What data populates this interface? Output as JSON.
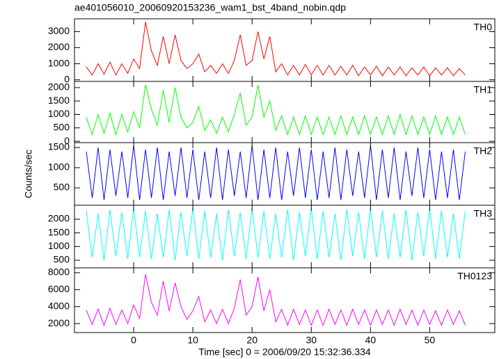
{
  "chart_data": [
    {
      "type": "line",
      "title": "ae401056010_20060920153236_wam1_bst_4band_nobin.qdp",
      "label": "TH0",
      "color": "#ff0000",
      "ylim": [
        -100,
        3800
      ],
      "yticks": [
        0,
        1000,
        2000,
        3000
      ],
      "xlim": [
        -10,
        61
      ],
      "x": [
        -8,
        -7,
        -6,
        -5,
        -4,
        -3,
        -2,
        -1,
        0,
        1,
        2,
        3,
        4,
        5,
        6,
        7,
        8,
        9,
        10,
        11,
        12,
        13,
        14,
        15,
        16,
        17,
        18,
        19,
        20,
        21,
        22,
        23,
        24,
        25,
        26,
        27,
        28,
        29,
        30,
        31,
        32,
        33,
        34,
        35,
        36,
        37,
        38,
        39,
        40,
        41,
        42,
        43,
        44,
        45,
        46,
        47,
        48,
        49,
        50,
        51,
        52,
        53,
        54,
        55,
        56
      ],
      "values": [
        800,
        300,
        1000,
        350,
        1100,
        300,
        1000,
        400,
        1300,
        700,
        3600,
        1800,
        900,
        2700,
        1000,
        2800,
        1200,
        700,
        1000,
        1600,
        500,
        900,
        400,
        1000,
        400,
        1200,
        2800,
        900,
        1200,
        3000,
        1300,
        2700,
        500,
        1000,
        300,
        900,
        300,
        950,
        300,
        900,
        300,
        900,
        300,
        850,
        300,
        900,
        250,
        800,
        300,
        850,
        250,
        800,
        300,
        800,
        250,
        750,
        300,
        800,
        250,
        750,
        300,
        750,
        250,
        700,
        300
      ]
    },
    {
      "type": "line",
      "label": "TH1",
      "color": "#00ff00",
      "ylim": [
        -50,
        2230
      ],
      "yticks": [
        0,
        500,
        1000,
        1500,
        2000
      ],
      "xlim": [
        -10,
        61
      ],
      "x": [
        -8,
        -7,
        -6,
        -5,
        -4,
        -3,
        -2,
        -1,
        0,
        1,
        2,
        3,
        4,
        5,
        6,
        7,
        8,
        9,
        10,
        11,
        12,
        13,
        14,
        15,
        16,
        17,
        18,
        19,
        20,
        21,
        22,
        23,
        24,
        25,
        26,
        27,
        28,
        29,
        30,
        31,
        32,
        33,
        34,
        35,
        36,
        37,
        38,
        39,
        40,
        41,
        42,
        43,
        44,
        45,
        46,
        47,
        48,
        49,
        50,
        51,
        52,
        53,
        54,
        55,
        56
      ],
      "values": [
        900,
        250,
        1000,
        300,
        1050,
        250,
        1000,
        350,
        1100,
        500,
        2100,
        1200,
        600,
        1900,
        700,
        2000,
        900,
        500,
        700,
        1300,
        400,
        800,
        300,
        900,
        350,
        1000,
        1800,
        600,
        900,
        2100,
        900,
        1500,
        400,
        950,
        250,
        900,
        250,
        950,
        250,
        900,
        250,
        900,
        250,
        950,
        250,
        900,
        250,
        950,
        250,
        900,
        250,
        950,
        250,
        1000,
        250,
        950,
        250,
        900,
        250,
        950,
        250,
        900,
        250,
        900,
        250
      ]
    },
    {
      "type": "line",
      "label": "TH2",
      "ylabel": "Counts/sec",
      "color": "#0000ff",
      "ylim": [
        70,
        1620
      ],
      "yticks": [
        500,
        1000,
        1500
      ],
      "xlim": [
        -10,
        61
      ],
      "x": [
        -8,
        -7,
        -6,
        -5,
        -4,
        -3,
        -2,
        -1,
        0,
        1,
        2,
        3,
        4,
        5,
        6,
        7,
        8,
        9,
        10,
        11,
        12,
        13,
        14,
        15,
        16,
        17,
        18,
        19,
        20,
        21,
        22,
        23,
        24,
        25,
        26,
        27,
        28,
        29,
        30,
        31,
        32,
        33,
        34,
        35,
        36,
        37,
        38,
        39,
        40,
        41,
        42,
        43,
        44,
        45,
        46,
        47,
        48,
        49,
        50,
        51,
        52,
        53,
        54,
        55,
        56
      ],
      "values": [
        1400,
        250,
        1500,
        200,
        1450,
        300,
        1400,
        250,
        1550,
        200,
        1450,
        250,
        1500,
        200,
        1400,
        300,
        1500,
        250,
        1450,
        200,
        1400,
        250,
        1500,
        200,
        1450,
        300,
        1400,
        250,
        1550,
        200,
        1450,
        250,
        1500,
        200,
        1400,
        300,
        1500,
        250,
        1450,
        200,
        1400,
        250,
        1500,
        200,
        1450,
        300,
        1400,
        250,
        1550,
        200,
        1450,
        250,
        1500,
        200,
        1400,
        300,
        1500,
        250,
        1450,
        200,
        1400,
        250,
        1450,
        200,
        1400
      ]
    },
    {
      "type": "line",
      "label": "TH3",
      "color": "#00ffff",
      "ylim": [
        220,
        2510
      ],
      "yticks": [
        500,
        1000,
        1500,
        2000
      ],
      "xlim": [
        -10,
        61
      ],
      "x": [
        -8,
        -7,
        -6,
        -5,
        -4,
        -3,
        -2,
        -1,
        0,
        1,
        2,
        3,
        4,
        5,
        6,
        7,
        8,
        9,
        10,
        11,
        12,
        13,
        14,
        15,
        16,
        17,
        18,
        19,
        20,
        21,
        22,
        23,
        24,
        25,
        26,
        27,
        28,
        29,
        30,
        31,
        32,
        33,
        34,
        35,
        36,
        37,
        38,
        39,
        40,
        41,
        42,
        43,
        44,
        45,
        46,
        47,
        48,
        49,
        50,
        51,
        52,
        53,
        54,
        55,
        56
      ],
      "values": [
        2300,
        600,
        2200,
        500,
        2350,
        650,
        2250,
        550,
        2400,
        600,
        2300,
        550,
        2200,
        600,
        2350,
        500,
        2250,
        650,
        2400,
        550,
        2300,
        600,
        2200,
        500,
        2350,
        650,
        2250,
        550,
        2400,
        600,
        2300,
        550,
        2200,
        600,
        2350,
        500,
        2250,
        650,
        2400,
        550,
        2300,
        600,
        2200,
        500,
        2350,
        650,
        2250,
        550,
        2400,
        600,
        2300,
        550,
        2200,
        600,
        2350,
        500,
        2250,
        650,
        2400,
        550,
        2300,
        600,
        2200,
        550,
        2300
      ]
    },
    {
      "type": "line",
      "label": "TH0123",
      "xlabel": "Time [sec] 0 = 2006/09/20 15:32:36.334",
      "color": "#ff00ff",
      "ylim": [
        940,
        8570
      ],
      "yticks": [
        2000,
        4000,
        6000,
        8000
      ],
      "xlim": [
        -10,
        61
      ],
      "xticks": [
        0,
        10,
        20,
        30,
        40,
        50
      ],
      "x": [
        -8,
        -7,
        -6,
        -5,
        -4,
        -3,
        -2,
        -1,
        0,
        1,
        2,
        3,
        4,
        5,
        6,
        7,
        8,
        9,
        10,
        11,
        12,
        13,
        14,
        15,
        16,
        17,
        18,
        19,
        20,
        21,
        22,
        23,
        24,
        25,
        26,
        27,
        28,
        29,
        30,
        31,
        32,
        33,
        34,
        35,
        36,
        37,
        38,
        39,
        40,
        41,
        42,
        43,
        44,
        45,
        46,
        47,
        48,
        49,
        50,
        51,
        52,
        53,
        54,
        55,
        56
      ],
      "values": [
        3600,
        1900,
        3700,
        1800,
        3800,
        1900,
        3600,
        2000,
        4200,
        2600,
        7800,
        4500,
        3000,
        7000,
        3500,
        6800,
        4000,
        2500,
        3500,
        5200,
        2200,
        3600,
        2000,
        3700,
        2000,
        3800,
        7200,
        3000,
        4000,
        7500,
        3500,
        6000,
        2200,
        3700,
        1800,
        3700,
        1900,
        3600,
        1800,
        3600,
        1800,
        3700,
        1900,
        3600,
        1800,
        3700,
        1900,
        3600,
        1800,
        3600,
        1900,
        3600,
        1800,
        3700,
        1900,
        3600,
        1800,
        3600,
        1900,
        3500,
        1800,
        3600,
        1900,
        3500,
        1800
      ]
    }
  ]
}
